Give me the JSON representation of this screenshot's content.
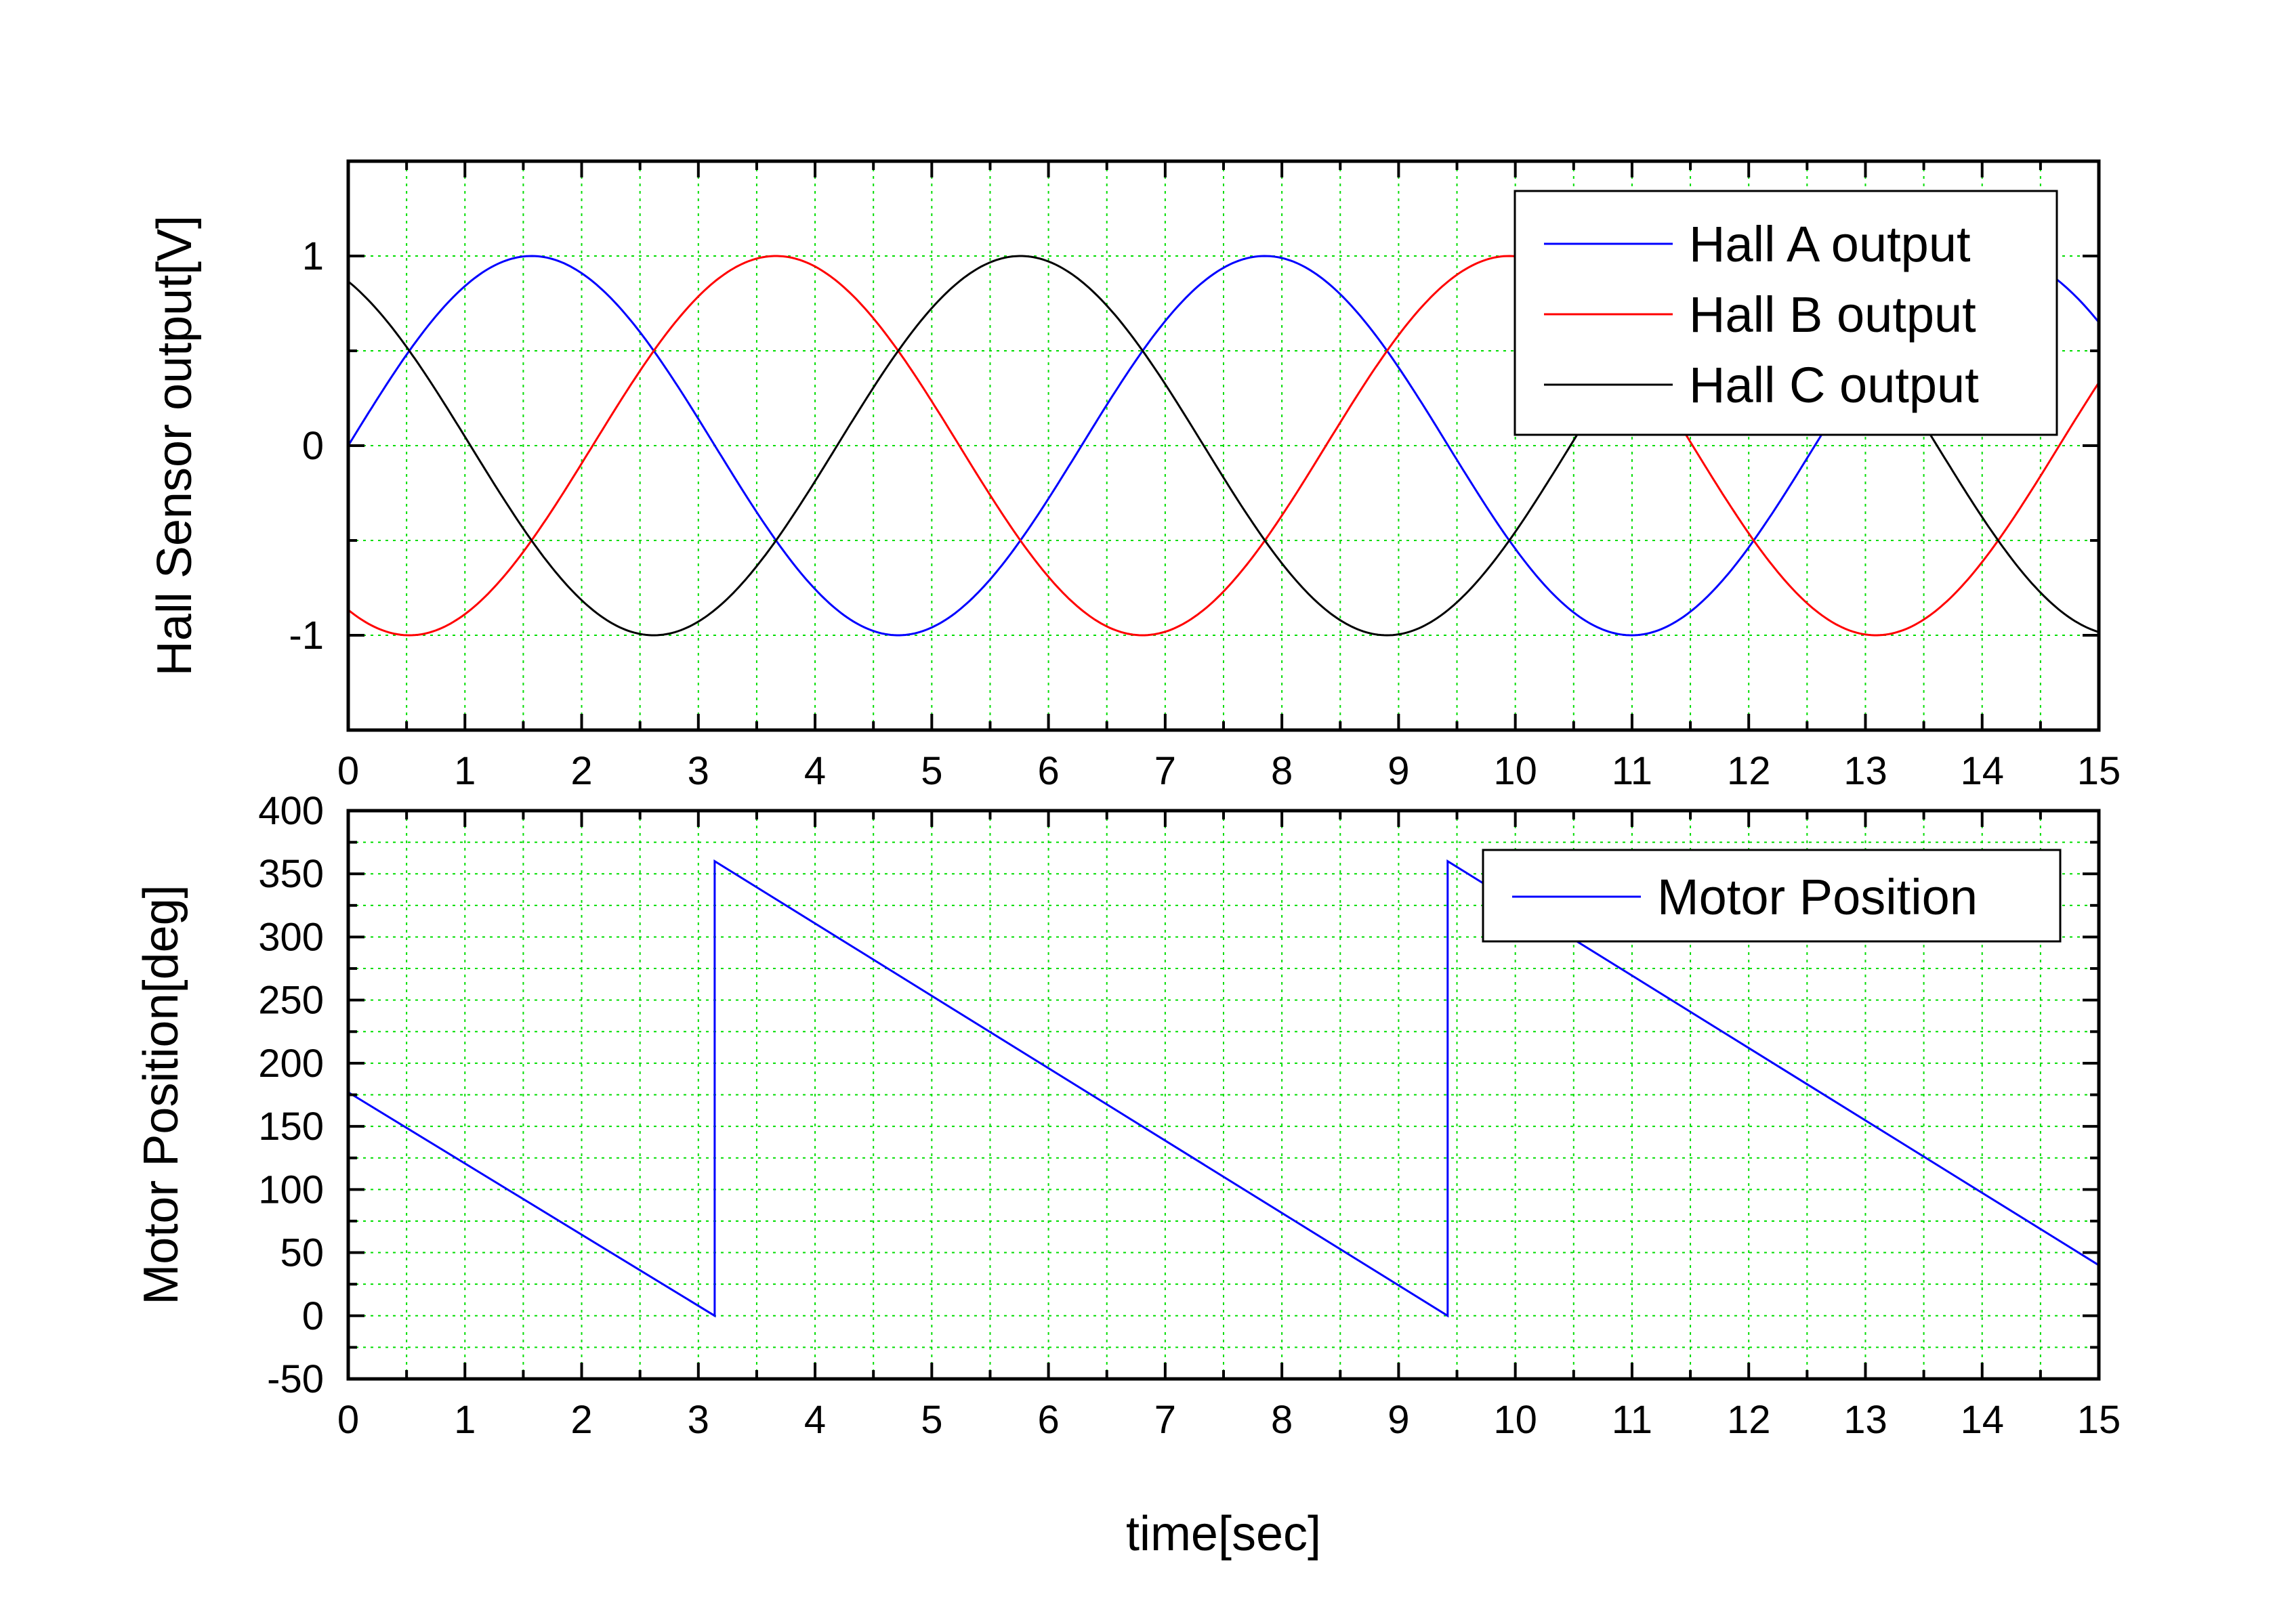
{
  "chart_data": [
    {
      "type": "line",
      "title": "",
      "xlabel": "",
      "ylabel": "Hall Sensor output[V]",
      "xlim": [
        0,
        15
      ],
      "ylim": [
        -1.5,
        1.5
      ],
      "x_ticks": [
        0,
        1,
        2,
        3,
        4,
        5,
        6,
        7,
        8,
        9,
        10,
        11,
        12,
        13,
        14,
        15
      ],
      "x_tick_labels": [
        "0",
        "1",
        "2",
        "3",
        "4",
        "5",
        "6",
        "7",
        "8",
        "9",
        "10",
        "11",
        "12",
        "13",
        "14",
        "15"
      ],
      "y_ticks": [
        -1,
        0,
        1
      ],
      "y_tick_labels": [
        "-1",
        "0",
        "1"
      ],
      "grid": true,
      "legend_position": "top-right",
      "series": [
        {
          "name": "Hall A output",
          "color": "#0000ff",
          "function": "sin(t)",
          "x_range": [
            0,
            15
          ]
        },
        {
          "name": "Hall B output",
          "color": "#ff0000",
          "function": "sin(t - 2π/3)",
          "x_range": [
            0,
            15
          ]
        },
        {
          "name": "Hall C output",
          "color": "#000000",
          "function": "sin(t + 2π/3)",
          "x_range": [
            0,
            15
          ]
        }
      ]
    },
    {
      "type": "line",
      "title": "",
      "xlabel": "time[sec]",
      "ylabel": "Motor Position[deg]",
      "xlim": [
        0,
        15
      ],
      "ylim": [
        -50,
        400
      ],
      "x_ticks": [
        0,
        1,
        2,
        3,
        4,
        5,
        6,
        7,
        8,
        9,
        10,
        11,
        12,
        13,
        14,
        15
      ],
      "x_tick_labels": [
        "0",
        "1",
        "2",
        "3",
        "4",
        "5",
        "6",
        "7",
        "8",
        "9",
        "10",
        "11",
        "12",
        "13",
        "14",
        "15"
      ],
      "y_ticks": [
        -50,
        0,
        50,
        100,
        150,
        200,
        250,
        300,
        350,
        400
      ],
      "y_tick_labels": [
        "-50",
        "0",
        "50",
        "100",
        "150",
        "200",
        "250",
        "300",
        "350",
        "400"
      ],
      "grid": true,
      "legend_position": "top-right",
      "series": [
        {
          "name": "Motor Position",
          "color": "#0000ff",
          "x": [
            0,
            3.14,
            3.14,
            9.42,
            9.42,
            15
          ],
          "y": [
            177,
            0,
            360,
            0,
            360,
            40
          ]
        }
      ]
    }
  ]
}
